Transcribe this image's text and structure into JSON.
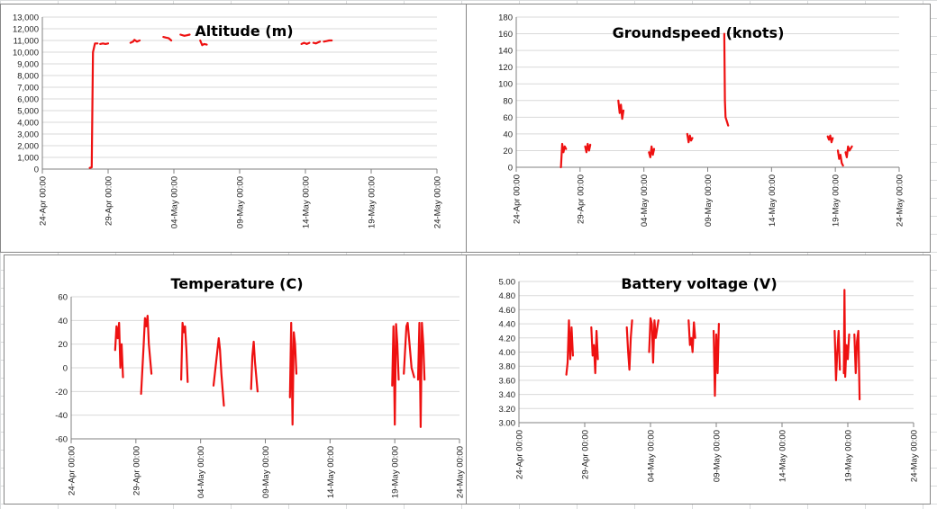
{
  "page": {
    "window_title": ""
  },
  "chart_data": [
    {
      "id": "altitude",
      "type": "line",
      "title": "Altitude (m)",
      "xlabel": "",
      "ylabel": "",
      "grid": "horizontal",
      "ylim": [
        0,
        13000
      ],
      "yticks": [
        0,
        1000,
        2000,
        3000,
        4000,
        5000,
        6000,
        7000,
        8000,
        9000,
        10000,
        11000,
        12000,
        13000
      ],
      "ytick_labels": [
        "0",
        "1,000",
        "2,000",
        "3,000",
        "4,000",
        "5,000",
        "6,000",
        "7,000",
        "8,000",
        "9,000",
        "10,000",
        "11,000",
        "12,000",
        "13,000"
      ],
      "xlim_days": [
        0,
        30
      ],
      "xtick_labels": [
        "24-Apr 00:00",
        "29-Apr 00:00",
        "04-May 00:00",
        "09-May 00:00",
        "14-May 00:00",
        "19-May 00:00",
        "24-May 00:00"
      ],
      "color": "#ee1111",
      "series": [
        {
          "x": [
            3.6,
            3.75,
            3.85,
            4.0,
            4.2
          ],
          "y": [
            100,
            150,
            10000,
            10750,
            10750
          ]
        },
        {
          "x": [
            4.4,
            4.6,
            4.8,
            5.0
          ],
          "y": [
            10700,
            10750,
            10700,
            10750
          ]
        },
        {
          "x": [
            6.7,
            6.9,
            7.0,
            7.2,
            7.4
          ],
          "y": [
            10800,
            10900,
            11050,
            10900,
            11000
          ]
        },
        {
          "x": [
            9.2,
            9.4,
            9.6,
            9.8
          ],
          "y": [
            11300,
            11250,
            11200,
            11000
          ]
        },
        {
          "x": [
            10.5,
            10.8,
            11.0,
            11.2
          ],
          "y": [
            11500,
            11400,
            11450,
            11500
          ]
        },
        {
          "x": [
            12.0,
            12.15,
            12.3,
            12.5
          ],
          "y": [
            11000,
            10600,
            10700,
            10650
          ]
        },
        {
          "x": [
            19.7,
            19.9,
            20.1,
            20.3
          ],
          "y": [
            10700,
            10800,
            10700,
            10800
          ]
        },
        {
          "x": [
            20.6,
            20.8,
            21.0,
            21.1
          ],
          "y": [
            10800,
            10750,
            10850,
            10900
          ]
        },
        {
          "x": [
            21.4,
            21.6,
            21.8,
            22.0
          ],
          "y": [
            10900,
            10950,
            11000,
            11000
          ]
        }
      ]
    },
    {
      "id": "groundspeed",
      "type": "line",
      "title": "Groundspeed (knots)",
      "xlabel": "",
      "ylabel": "",
      "grid": "horizontal",
      "ylim": [
        0,
        180
      ],
      "yticks": [
        0,
        20,
        40,
        60,
        80,
        100,
        120,
        140,
        160,
        180
      ],
      "ytick_labels": [
        "0",
        "20",
        "40",
        "60",
        "80",
        "100",
        "120",
        "140",
        "160",
        "180"
      ],
      "xlim_days": [
        0,
        30
      ],
      "xtick_labels": [
        "24-Apr 00:00",
        "29-Apr 00:00",
        "04-May 00:00",
        "09-May 00:00",
        "14-May 00:00",
        "19-May 00:00",
        "24-May 00:00"
      ],
      "color": "#ee1111",
      "series": [
        {
          "x": [
            3.5,
            3.6,
            3.7,
            3.8,
            3.9
          ],
          "y": [
            0,
            28,
            18,
            25,
            22
          ]
        },
        {
          "x": [
            5.4,
            5.5,
            5.6,
            5.7,
            5.8
          ],
          "y": [
            25,
            18,
            28,
            20,
            27
          ]
        },
        {
          "x": [
            8.0,
            8.1,
            8.2,
            8.3,
            8.4
          ],
          "y": [
            80,
            65,
            75,
            58,
            68
          ]
        },
        {
          "x": [
            10.4,
            10.5,
            10.6,
            10.7,
            10.8
          ],
          "y": [
            18,
            12,
            25,
            15,
            22
          ]
        },
        {
          "x": [
            13.4,
            13.5,
            13.6,
            13.7,
            13.8
          ],
          "y": [
            40,
            30,
            38,
            32,
            35
          ]
        },
        {
          "x": [
            16.3,
            16.35,
            16.4,
            16.5,
            16.6
          ],
          "y": [
            160,
            80,
            60,
            55,
            50
          ]
        },
        {
          "x": [
            24.4,
            24.5,
            24.6,
            24.7,
            24.8
          ],
          "y": [
            37,
            33,
            38,
            30,
            35
          ]
        },
        {
          "x": [
            25.2,
            25.3,
            25.4,
            25.5,
            25.6
          ],
          "y": [
            20,
            10,
            15,
            5,
            2
          ]
        },
        {
          "x": [
            25.8,
            25.9,
            26.0,
            26.1,
            26.3
          ],
          "y": [
            18,
            12,
            25,
            20,
            25
          ]
        }
      ]
    },
    {
      "id": "temperature",
      "type": "line",
      "title": "Temperature (C)",
      "xlabel": "",
      "ylabel": "",
      "grid": "horizontal",
      "ylim": [
        -60,
        60
      ],
      "yticks": [
        -60,
        -40,
        -20,
        0,
        20,
        40,
        60
      ],
      "ytick_labels": [
        "-60",
        "-40",
        "-20",
        "0",
        "20",
        "40",
        "60"
      ],
      "xlim_days": [
        0,
        30
      ],
      "xtick_labels": [
        "24-Apr 00:00",
        "29-Apr 00:00",
        "04-May 00:00",
        "09-May 00:00",
        "14-May 00:00",
        "19-May 00:00",
        "24-May 00:00"
      ],
      "color": "#ee1111",
      "series": [
        {
          "x": [
            3.4,
            3.5,
            3.6,
            3.7,
            3.8,
            3.9,
            4.0
          ],
          "y": [
            15,
            35,
            25,
            38,
            0,
            20,
            -8
          ]
        },
        {
          "x": [
            5.4,
            5.6,
            5.7,
            5.8,
            5.9,
            6.0,
            6.2
          ],
          "y": [
            -22,
            20,
            42,
            35,
            44,
            20,
            -5
          ]
        },
        {
          "x": [
            8.5,
            8.6,
            8.7,
            8.8,
            8.9,
            9.0
          ],
          "y": [
            -10,
            38,
            30,
            35,
            15,
            -12
          ]
        },
        {
          "x": [
            11.0,
            11.2,
            11.4,
            11.5,
            11.6,
            11.8
          ],
          "y": [
            -15,
            5,
            25,
            15,
            -5,
            -32
          ]
        },
        {
          "x": [
            13.9,
            14.0,
            14.1,
            14.2,
            14.4
          ],
          "y": [
            -18,
            10,
            22,
            5,
            -20
          ]
        },
        {
          "x": [
            16.9,
            17.0,
            17.1,
            17.2,
            17.3,
            17.4
          ],
          "y": [
            -25,
            38,
            -48,
            30,
            20,
            -5
          ]
        },
        {
          "x": [
            24.8,
            24.9,
            25.0,
            25.1,
            25.2,
            25.3
          ],
          "y": [
            -15,
            35,
            -48,
            37,
            20,
            -10
          ]
        },
        {
          "x": [
            25.7,
            25.9,
            26.0,
            26.1,
            26.3,
            26.5
          ],
          "y": [
            -5,
            35,
            38,
            25,
            0,
            -8
          ]
        },
        {
          "x": [
            26.8,
            26.9,
            27.0,
            27.1,
            27.2,
            27.3
          ],
          "y": [
            -10,
            38,
            -50,
            38,
            20,
            -10
          ]
        }
      ]
    },
    {
      "id": "battery",
      "type": "line",
      "title": "Battery voltage (V)",
      "xlabel": "",
      "ylabel": "",
      "grid": "horizontal",
      "ylim": [
        3.0,
        5.0
      ],
      "yticks": [
        3.0,
        3.2,
        3.4,
        3.6,
        3.8,
        4.0,
        4.2,
        4.4,
        4.6,
        4.8,
        5.0
      ],
      "ytick_labels": [
        "3.00",
        "3.20",
        "3.40",
        "3.60",
        "3.80",
        "4.00",
        "4.20",
        "4.40",
        "4.60",
        "4.80",
        "5.00"
      ],
      "xlim_days": [
        0,
        30
      ],
      "xtick_labels": [
        "24-Apr 00:00",
        "29-Apr 00:00",
        "04-May 00:00",
        "09-May 00:00",
        "14-May 00:00",
        "19-May 00:00",
        "24-May 00:00"
      ],
      "color": "#ee1111",
      "series": [
        {
          "x": [
            3.6,
            3.7,
            3.8,
            3.9,
            4.0,
            4.1
          ],
          "y": [
            3.68,
            3.85,
            4.45,
            3.9,
            4.35,
            3.95
          ]
        },
        {
          "x": [
            5.5,
            5.6,
            5.7,
            5.8,
            5.9,
            6.0
          ],
          "y": [
            4.35,
            3.95,
            4.1,
            3.7,
            4.3,
            3.9
          ]
        },
        {
          "x": [
            8.2,
            8.3,
            8.4,
            8.5,
            8.6
          ],
          "y": [
            4.35,
            4.0,
            3.75,
            4.2,
            4.45
          ]
        },
        {
          "x": [
            9.9,
            10.0,
            10.1,
            10.2,
            10.3,
            10.4,
            10.6
          ],
          "y": [
            4.0,
            4.48,
            4.4,
            3.85,
            4.45,
            4.2,
            4.45
          ]
        },
        {
          "x": [
            12.9,
            13.0,
            13.1,
            13.2,
            13.3,
            13.4
          ],
          "y": [
            4.45,
            4.1,
            4.2,
            4.0,
            4.42,
            4.2
          ]
        },
        {
          "x": [
            14.8,
            14.9,
            15.0,
            15.1,
            15.2
          ],
          "y": [
            4.3,
            3.38,
            4.25,
            3.7,
            4.4
          ]
        },
        {
          "x": [
            24.0,
            24.1,
            24.2,
            24.3,
            24.4
          ],
          "y": [
            4.3,
            3.6,
            4.0,
            4.3,
            3.75
          ]
        },
        {
          "x": [
            24.7,
            24.75,
            24.8,
            24.9,
            25.0,
            25.1
          ],
          "y": [
            3.7,
            4.88,
            3.65,
            4.1,
            3.9,
            4.25
          ]
        },
        {
          "x": [
            25.5,
            25.6,
            25.7,
            25.8,
            25.9
          ],
          "y": [
            4.25,
            3.7,
            4.15,
            4.3,
            3.33
          ]
        }
      ]
    }
  ]
}
